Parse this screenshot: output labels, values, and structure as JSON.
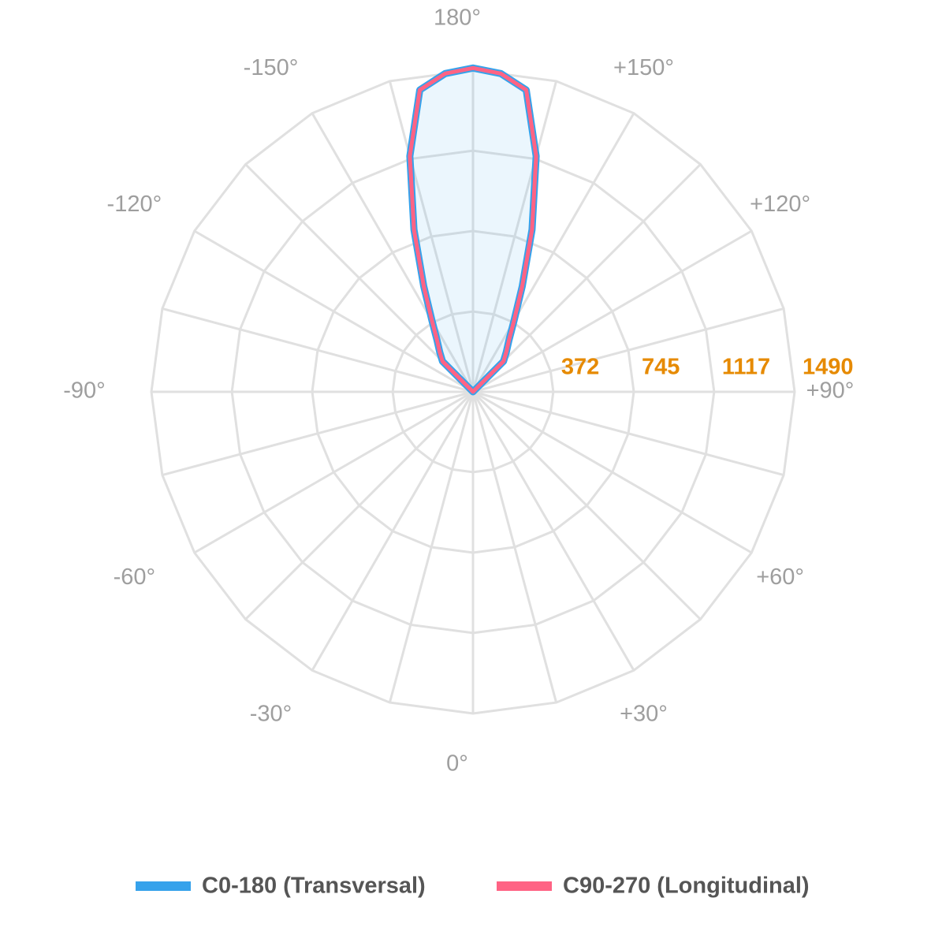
{
  "chart_data": {
    "type": "polar-line",
    "x": [
      -120,
      -135,
      -140,
      -145,
      -150,
      -155,
      -160,
      -165,
      -170,
      -175,
      180,
      175,
      170,
      165,
      160,
      155,
      150,
      145,
      140,
      135,
      120
    ],
    "series": [
      {
        "name": "C0-180 (Transversal)",
        "color": "#36a2eb",
        "values": [
          0,
          200,
          240,
          290,
          380,
          540,
          800,
          1130,
          1420,
          1480,
          1500,
          1480,
          1420,
          1130,
          800,
          540,
          380,
          290,
          240,
          200,
          0
        ]
      },
      {
        "name": "C90-270 (Longitudinal)",
        "color": "#ff6384",
        "values": [
          0,
          200,
          240,
          290,
          380,
          540,
          800,
          1130,
          1420,
          1480,
          1500,
          1480,
          1420,
          1130,
          800,
          540,
          380,
          290,
          240,
          200,
          0
        ]
      }
    ],
    "ylim": [
      0,
      1490
    ],
    "yticks": [
      372,
      745,
      1117,
      1490
    ],
    "xticks": [
      {
        "value": 0,
        "label": "0°"
      },
      {
        "value": 30,
        "label": "+30°"
      },
      {
        "value": 60,
        "label": "+60°"
      },
      {
        "value": 90,
        "label": "+90°"
      },
      {
        "value": 120,
        "label": "+120°"
      },
      {
        "value": 150,
        "label": "+150°"
      },
      {
        "value": 180,
        "label": "180°"
      },
      {
        "value": -150,
        "label": "-150°"
      },
      {
        "value": -120,
        "label": "-120°"
      },
      {
        "value": -90,
        "label": "-90°"
      },
      {
        "value": -60,
        "label": "-60°"
      },
      {
        "value": -30,
        "label": "-30°"
      }
    ],
    "grid": true
  }
}
